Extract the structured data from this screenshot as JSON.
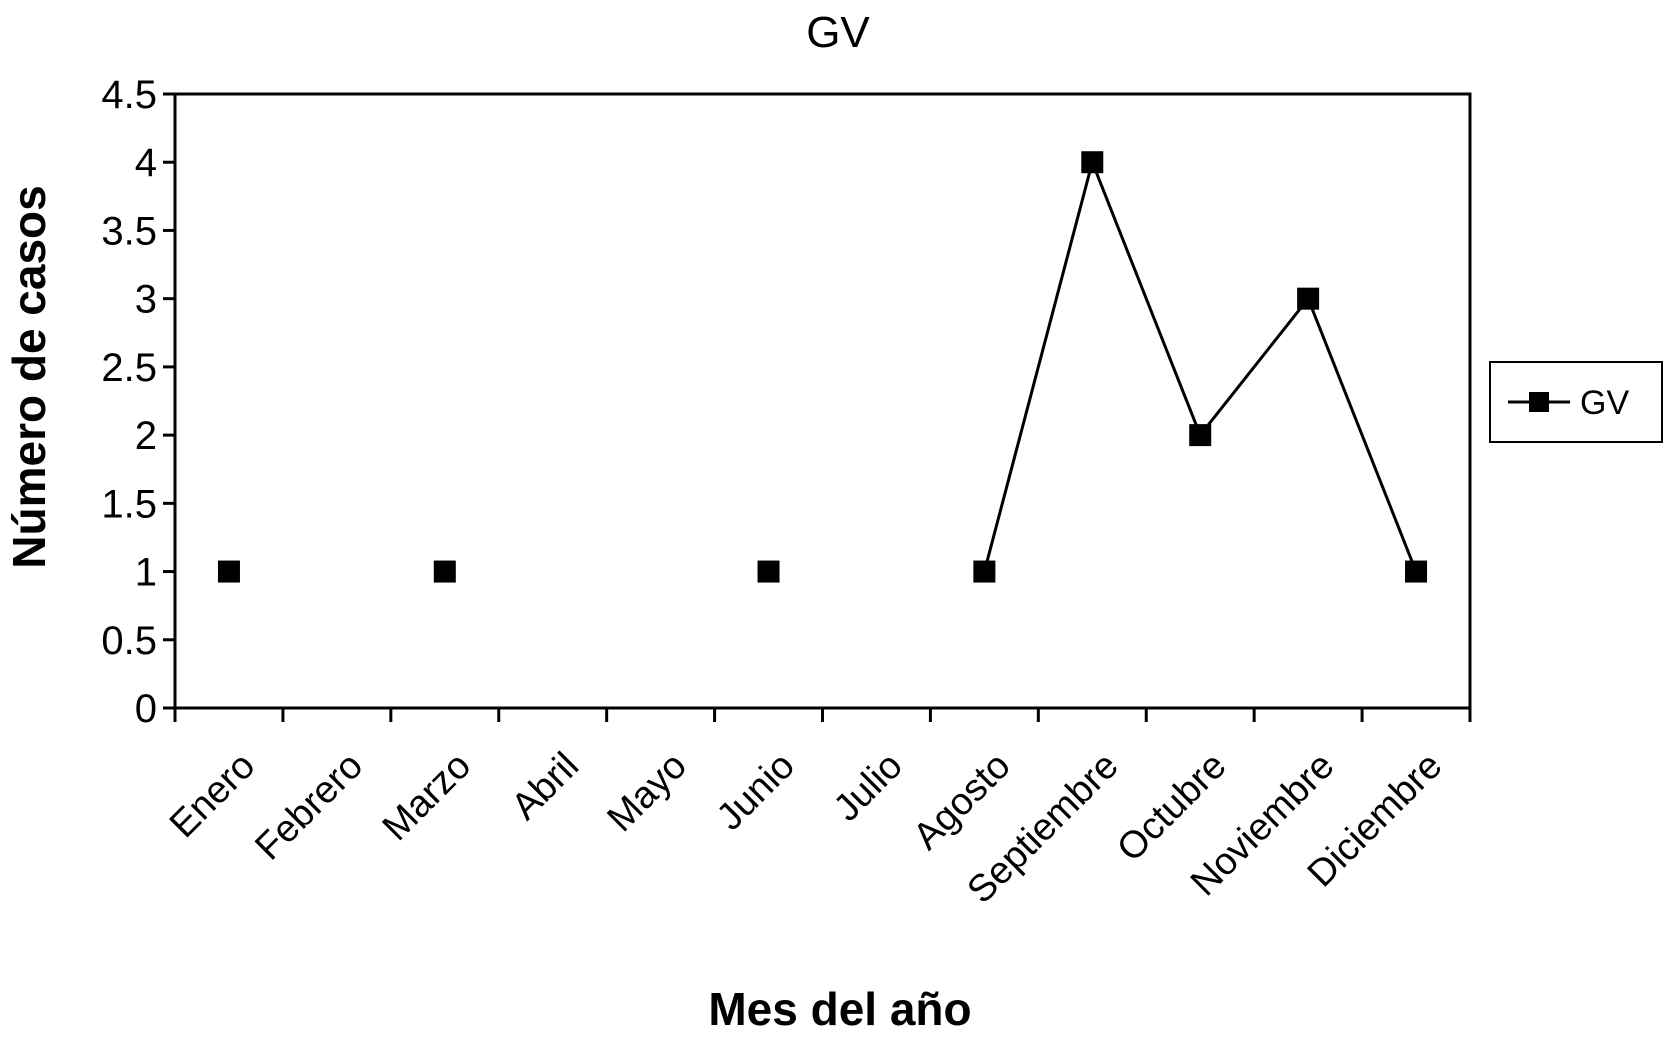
{
  "chart_data": {
    "type": "line",
    "title": "GV",
    "xlabel": "Mes del año",
    "ylabel": "Número de casos",
    "categories": [
      "Enero",
      "Febrero",
      "Marzo",
      "Abril",
      "Mayo",
      "Junio",
      "Julio",
      "Agosto",
      "Septiembre",
      "Octubre",
      "Noviembre",
      "Diciembre"
    ],
    "series": [
      {
        "name": "GV",
        "values": [
          1,
          null,
          1,
          null,
          null,
          1,
          null,
          1,
          4,
          2,
          3,
          1
        ],
        "color": "#000000",
        "marker": "square"
      }
    ],
    "ylim": [
      0,
      4.5
    ],
    "yticks": [
      "0",
      "0.5",
      "1",
      "1.5",
      "2",
      "2.5",
      "3",
      "3.5",
      "4",
      "4.5"
    ],
    "grid": false,
    "legend_position": "right"
  }
}
